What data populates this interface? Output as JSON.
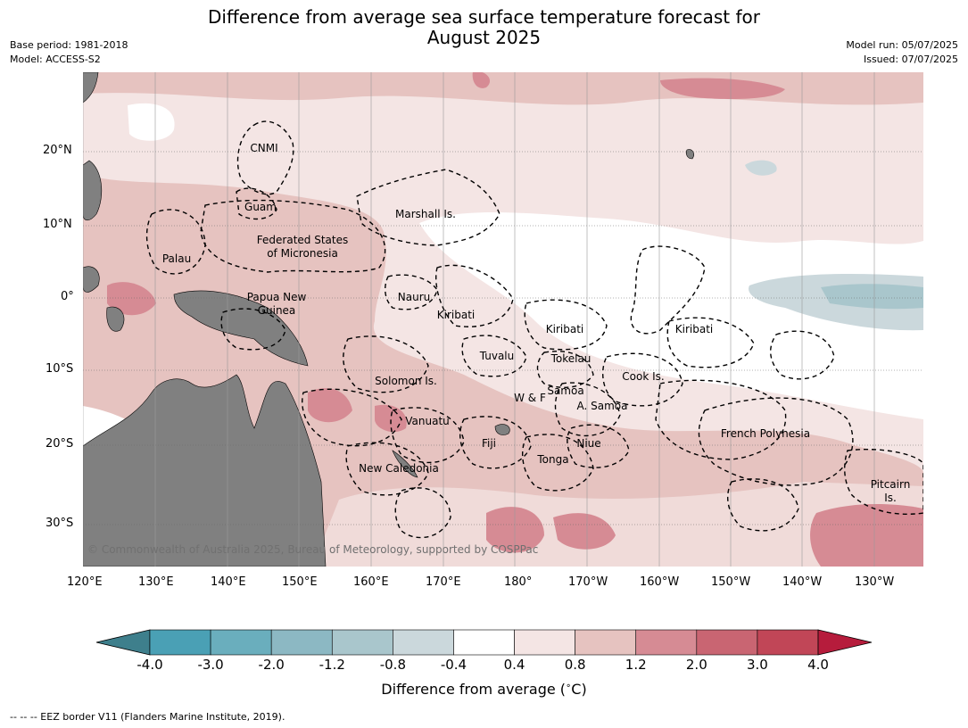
{
  "title": {
    "line1": "Difference from average sea surface temperature forecast for",
    "line2": "August 2025"
  },
  "meta": {
    "base_period": "Base period: 1981-2018",
    "model": "Model: ACCESS-S2",
    "model_run": "Model run: 05/07/2025",
    "issued": "Issued: 07/07/2025"
  },
  "axes": {
    "lon_labels": [
      "120°E",
      "130°E",
      "140°E",
      "150°E",
      "160°E",
      "170°E",
      "180°",
      "170°W",
      "160°W",
      "150°W",
      "140°W",
      "130°W"
    ],
    "lat_labels": [
      "20°N",
      "10°N",
      "0°",
      "10°S",
      "20°S",
      "30°S"
    ]
  },
  "regions": {
    "cnmi": "CNMI",
    "guam": "Guam",
    "palau": "Palau",
    "fsm_line1": "Federated States",
    "fsm_line2": "of Micronesia",
    "marshall": "Marshall Is.",
    "nauru": "Nauru",
    "kiribati_w": "Kiribati",
    "kiribati_c": "Kiribati",
    "kiribati_e": "Kiribati",
    "png_line1": "Papua New",
    "png_line2": "Guinea",
    "tuvalu": "Tuvalu",
    "tokelau": "Tokelau",
    "cook": "Cook Is.",
    "solomon": "Solomon Is.",
    "samoa": "Samoa",
    "wf": "W & F",
    "asamoa": "A. Samoa",
    "vanuatu": "Vanuatu",
    "fiji": "Fiji",
    "niue": "Niue",
    "tonga": "Tonga",
    "newcal": "New Caledonia",
    "frpoly": "French Polynesia",
    "pitcairn_line1": "Pitcairn",
    "pitcairn_line2": "Is."
  },
  "copyright": "© Commonwealth of Australia 2025, Bureau of Meteorology, supported by COSPPac",
  "colorbar": {
    "labels": [
      "-4.0",
      "-3.0",
      "-2.0",
      "-1.2",
      "-0.8",
      "-0.4",
      "0.4",
      "0.8",
      "1.2",
      "2.0",
      "3.0",
      "4.0"
    ],
    "colors": [
      "#3e7f8c",
      "#4aa0b5",
      "#6aaebd",
      "#8cb8c3",
      "#a9c6cc",
      "#cbd8dc",
      "#ffffff",
      "#f4e5e4",
      "#e6c3c0",
      "#d68b94",
      "#c96572",
      "#c14657",
      "#b61c3c"
    ],
    "title": "Difference from average ($^\\circ$C)"
  },
  "footnote": "--  --  -- EEZ border V11 (Flanders Marine Institute, 2019).",
  "chart_data": {
    "type": "heatmap",
    "title": "Difference from average sea surface temperature forecast for August 2025",
    "xlabel": "",
    "ylabel": "",
    "xlim": [
      "120°E",
      "125°W"
    ],
    "ylim": [
      "35°S",
      "31°N"
    ],
    "colorbar_levels": [
      -4.0,
      -3.0,
      -2.0,
      -1.2,
      -0.8,
      -0.4,
      0.4,
      0.8,
      1.2,
      2.0,
      3.0,
      4.0
    ],
    "grid": true
  }
}
